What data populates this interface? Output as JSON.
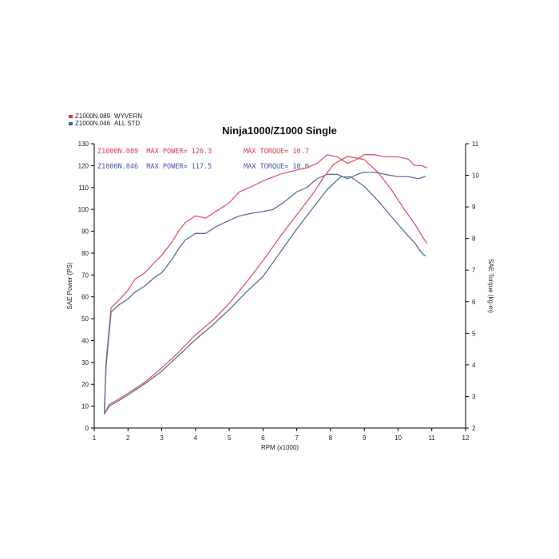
{
  "colors": {
    "wyvern": "#e0566a",
    "std": "#5a6f9a",
    "axis": "#000000"
  },
  "legend": [
    {
      "code": "Z1000N.089",
      "name": "WYVERN",
      "color": "#d83a4e"
    },
    {
      "code": "Z1000N.046",
      "name": "ALL STD",
      "color": "#3a5aa8"
    }
  ],
  "stats": {
    "wyvern_power": "Z1000N.089  MAX POWER= 126.3",
    "wyvern_torque": "MAX TORQUE= 10.7",
    "std_power": "Z1000N.046  MAX POWER= 117.5",
    "std_torque": "MAX TORQUE= 10.0"
  },
  "chart_data": {
    "type": "line",
    "title": "Ninja1000/Z1000 Single",
    "xlabel": "RPM (x1000)",
    "ylabel": "SAE Power (PS)",
    "y2label": "SAE Torque (kg-m)",
    "xlim": [
      1,
      12
    ],
    "ylim": [
      0,
      130
    ],
    "y2lim": [
      2,
      11
    ],
    "xticks": [
      1,
      2,
      3,
      4,
      5,
      6,
      7,
      8,
      9,
      10,
      11,
      12
    ],
    "yticks": [
      0,
      10,
      20,
      30,
      40,
      50,
      60,
      70,
      80,
      90,
      100,
      110,
      120,
      130
    ],
    "y2ticks": [
      2,
      3,
      4,
      5,
      6,
      7,
      8,
      9,
      10,
      11
    ],
    "grid": false,
    "series": [
      {
        "name": "Z1000N.089 WYVERN power",
        "axis": "left",
        "color": "#e0566a",
        "x": [
          1.3,
          1.35,
          1.5,
          1.7,
          2.0,
          2.2,
          2.5,
          2.8,
          3.0,
          3.3,
          3.5,
          3.7,
          4.0,
          4.3,
          4.6,
          5.0,
          5.3,
          5.6,
          6.0,
          6.5,
          7.0,
          7.3,
          7.6,
          7.9,
          8.2,
          8.5,
          8.8,
          9.0,
          9.3,
          9.6,
          10.0,
          10.3,
          10.5,
          10.7,
          10.85
        ],
        "values": [
          8,
          30,
          55,
          58,
          63,
          68,
          71,
          76,
          79,
          85,
          90,
          94,
          97,
          96,
          99,
          103,
          108,
          110,
          113,
          116,
          118,
          119,
          121,
          125,
          124,
          121,
          123,
          125,
          125,
          124,
          124,
          123,
          120,
          120,
          119
        ]
      },
      {
        "name": "Z1000N.046 ALL STD power",
        "axis": "left",
        "color": "#5a6f9a",
        "x": [
          1.3,
          1.35,
          1.5,
          1.7,
          2.0,
          2.2,
          2.5,
          2.8,
          3.0,
          3.3,
          3.5,
          3.7,
          4.0,
          4.3,
          4.6,
          5.0,
          5.3,
          5.6,
          6.0,
          6.3,
          6.6,
          7.0,
          7.3,
          7.6,
          7.9,
          8.2,
          8.5,
          8.8,
          9.0,
          9.3,
          9.6,
          10.0,
          10.3,
          10.6,
          10.8
        ],
        "values": [
          7,
          28,
          53,
          56,
          59,
          62,
          65,
          69,
          71,
          77,
          82,
          86,
          89,
          89,
          92,
          95,
          97,
          98,
          99,
          100,
          103,
          108,
          110,
          114,
          116,
          116,
          114,
          116,
          117,
          117,
          116,
          115,
          115,
          114,
          115
        ]
      },
      {
        "name": "Z1000N.089 WYVERN torque",
        "axis": "right",
        "color": "#e0566a",
        "x": [
          1.3,
          1.45,
          1.7,
          2.0,
          2.5,
          3.0,
          3.5,
          4.0,
          4.5,
          5.0,
          5.5,
          6.0,
          6.5,
          7.0,
          7.5,
          7.8,
          8.1,
          8.5,
          9.0,
          9.4,
          9.8,
          10.2,
          10.5,
          10.7,
          10.85
        ],
        "values": [
          2.45,
          2.75,
          2.9,
          3.1,
          3.45,
          3.9,
          4.4,
          4.95,
          5.4,
          5.95,
          6.6,
          7.3,
          8.05,
          8.75,
          9.45,
          9.95,
          10.35,
          10.6,
          10.5,
          10.1,
          9.55,
          8.9,
          8.45,
          8.1,
          7.85
        ]
      },
      {
        "name": "Z1000N.046 ALL STD torque",
        "axis": "right",
        "color": "#5a6f9a",
        "x": [
          1.3,
          1.45,
          1.7,
          2.0,
          2.5,
          3.0,
          3.5,
          4.0,
          4.5,
          5.0,
          5.5,
          6.0,
          6.5,
          7.0,
          7.5,
          7.9,
          8.3,
          8.6,
          9.0,
          9.4,
          9.8,
          10.2,
          10.5,
          10.7,
          10.8
        ],
        "values": [
          2.45,
          2.7,
          2.85,
          3.05,
          3.4,
          3.8,
          4.3,
          4.8,
          5.25,
          5.75,
          6.3,
          6.8,
          7.55,
          8.3,
          9.0,
          9.55,
          9.95,
          9.95,
          9.65,
          9.2,
          8.7,
          8.2,
          7.85,
          7.55,
          7.45
        ]
      }
    ]
  }
}
